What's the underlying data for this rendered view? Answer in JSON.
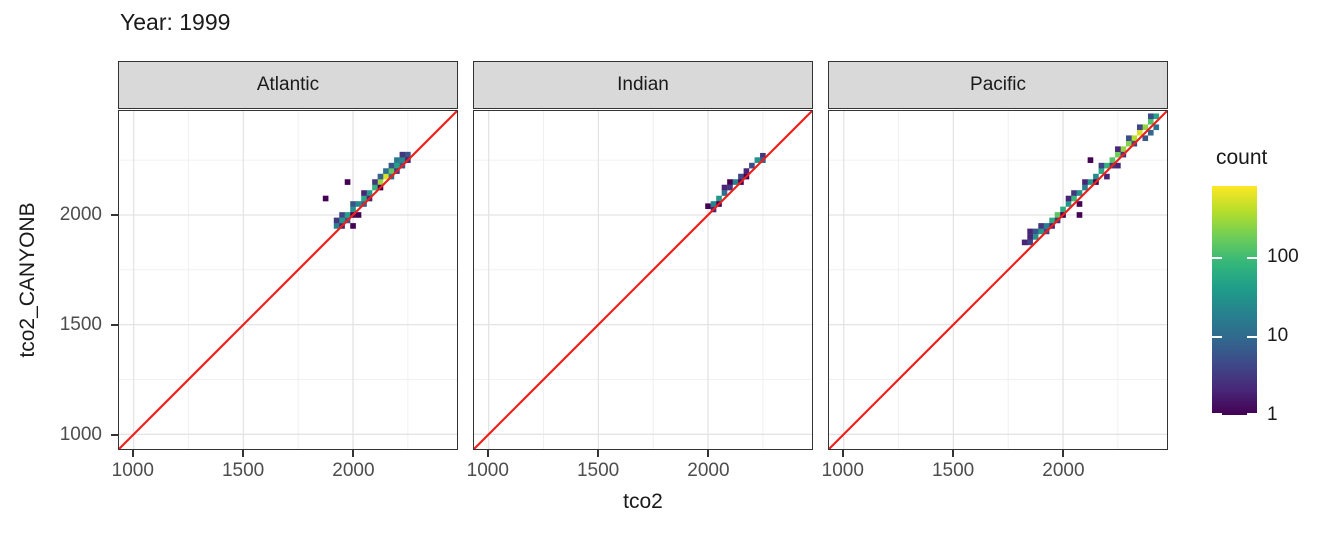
{
  "chart_data": {
    "type": "heatmap",
    "title": "Year: 1999",
    "xlabel": "tco2",
    "ylabel": "tco2_CANYONB",
    "xlim": [
      933,
      2474
    ],
    "ylim": [
      933,
      2474
    ],
    "x_ticks": [
      1000,
      1500,
      2000
    ],
    "y_ticks": [
      1000,
      1500,
      2000
    ],
    "minor_ticks": [
      1250,
      1750,
      2250
    ],
    "grid": true,
    "binwidth": 25,
    "identity_line": {
      "equation": "y = x",
      "color": "#F01E19"
    },
    "facets": [
      {
        "label": "Atlantic",
        "bins": [
          [
            1925,
            1950,
            20
          ],
          [
            1950,
            1975,
            35
          ],
          [
            1975,
            2000,
            45
          ],
          [
            2000,
            2025,
            30
          ],
          [
            2025,
            2050,
            25
          ],
          [
            2050,
            2075,
            55
          ],
          [
            2075,
            2100,
            35
          ],
          [
            2100,
            2125,
            80
          ],
          [
            2125,
            2150,
            300
          ],
          [
            2150,
            2175,
            550
          ],
          [
            2175,
            2200,
            150
          ],
          [
            2200,
            2225,
            45
          ],
          [
            2225,
            2250,
            25
          ],
          [
            2250,
            2275,
            6
          ],
          [
            2250,
            2250,
            2
          ],
          [
            1950,
            2000,
            4
          ],
          [
            2000,
            2050,
            6
          ],
          [
            2050,
            2100,
            2
          ],
          [
            2100,
            2150,
            3
          ],
          [
            2125,
            2175,
            8
          ],
          [
            2150,
            2200,
            12
          ],
          [
            2175,
            2225,
            6
          ],
          [
            2200,
            2250,
            15
          ],
          [
            2225,
            2275,
            3
          ],
          [
            1950,
            1950,
            2
          ],
          [
            1975,
            1975,
            6
          ],
          [
            2050,
            2050,
            8
          ],
          [
            2075,
            2075,
            2
          ],
          [
            2175,
            2175,
            12
          ],
          [
            2200,
            2200,
            3
          ],
          [
            2225,
            2225,
            6
          ],
          [
            2000,
            1950,
            1
          ],
          [
            2025,
            2000,
            1
          ],
          [
            1875,
            2075,
            1
          ],
          [
            1975,
            2150,
            1
          ],
          [
            1925,
            1975,
            3
          ],
          [
            2000,
            2000,
            1
          ],
          [
            2125,
            2125,
            1
          ]
        ]
      },
      {
        "label": "Indian",
        "bins": [
          [
            2000,
            2040,
            1
          ],
          [
            2025,
            2050,
            22
          ],
          [
            2050,
            2075,
            35
          ],
          [
            2075,
            2100,
            12
          ],
          [
            2100,
            2125,
            3
          ],
          [
            2125,
            2150,
            20
          ],
          [
            2150,
            2175,
            4
          ],
          [
            2175,
            2200,
            2
          ],
          [
            2200,
            2225,
            5
          ],
          [
            2225,
            2250,
            30
          ],
          [
            2250,
            2270,
            3
          ],
          [
            2025,
            2025,
            2
          ],
          [
            2050,
            2050,
            1
          ],
          [
            2075,
            2125,
            2
          ],
          [
            2100,
            2150,
            1
          ],
          [
            2150,
            2150,
            1
          ],
          [
            2175,
            2175,
            1
          ],
          [
            2250,
            2250,
            8
          ]
        ]
      },
      {
        "label": "Pacific",
        "bins": [
          [
            1850,
            1875,
            4
          ],
          [
            1875,
            1900,
            30
          ],
          [
            1900,
            1925,
            35
          ],
          [
            1925,
            1950,
            20
          ],
          [
            1950,
            1975,
            60
          ],
          [
            1975,
            2000,
            140
          ],
          [
            2000,
            2025,
            60
          ],
          [
            2025,
            2050,
            35
          ],
          [
            2050,
            2075,
            90
          ],
          [
            2075,
            2100,
            30
          ],
          [
            2100,
            2125,
            20
          ],
          [
            2125,
            2150,
            35
          ],
          [
            2150,
            2175,
            25
          ],
          [
            2175,
            2200,
            55
          ],
          [
            2200,
            2225,
            80
          ],
          [
            2225,
            2250,
            130
          ],
          [
            2250,
            2275,
            180
          ],
          [
            2275,
            2300,
            260
          ],
          [
            2300,
            2325,
            220
          ],
          [
            2325,
            2350,
            380
          ],
          [
            2350,
            2375,
            550
          ],
          [
            2375,
            2400,
            260
          ],
          [
            2400,
            2425,
            120
          ],
          [
            2425,
            2450,
            50
          ],
          [
            1825,
            1875,
            2
          ],
          [
            1850,
            1900,
            2
          ],
          [
            1850,
            1925,
            2
          ],
          [
            1875,
            1925,
            6
          ],
          [
            1900,
            1950,
            3
          ],
          [
            1925,
            1925,
            4
          ],
          [
            1950,
            1950,
            2
          ],
          [
            1975,
            1975,
            3
          ],
          [
            2000,
            2000,
            1
          ],
          [
            2025,
            2075,
            2
          ],
          [
            2050,
            2100,
            3
          ],
          [
            2075,
            2050,
            1
          ],
          [
            2075,
            2000,
            1
          ],
          [
            2100,
            2150,
            2
          ],
          [
            2125,
            2250,
            1
          ],
          [
            2150,
            2150,
            1
          ],
          [
            2175,
            2225,
            4
          ],
          [
            2200,
            2175,
            2
          ],
          [
            2225,
            2225,
            3
          ],
          [
            2250,
            2300,
            2
          ],
          [
            2275,
            2275,
            3
          ],
          [
            2300,
            2350,
            5
          ],
          [
            2325,
            2325,
            4
          ],
          [
            2350,
            2400,
            4
          ],
          [
            2375,
            2350,
            6
          ],
          [
            2400,
            2375,
            9
          ],
          [
            2425,
            2400,
            12
          ],
          [
            2400,
            2450,
            5
          ],
          [
            2250,
            2225,
            2
          ]
        ]
      }
    ],
    "legend": {
      "title": "count",
      "position": "right",
      "scale": "log10",
      "ticks": [
        1,
        10,
        100
      ],
      "max": 800,
      "colormap": "viridis",
      "colors": [
        "#440154",
        "#482878",
        "#3e4989",
        "#31688e",
        "#26828e",
        "#1f9e89",
        "#35b779",
        "#6ece58",
        "#b5de2b",
        "#fde725"
      ]
    },
    "theme": {
      "strip_fill": "#d9d9d9",
      "strip_border": "#333333",
      "panel_border": "#333333",
      "grid_major": "#e4e4e4",
      "grid_minor": "#f0f0f0",
      "tick_color": "#333333",
      "tick_label_color": "#4d4d4d",
      "text_color": "#1a1a1a"
    }
  }
}
